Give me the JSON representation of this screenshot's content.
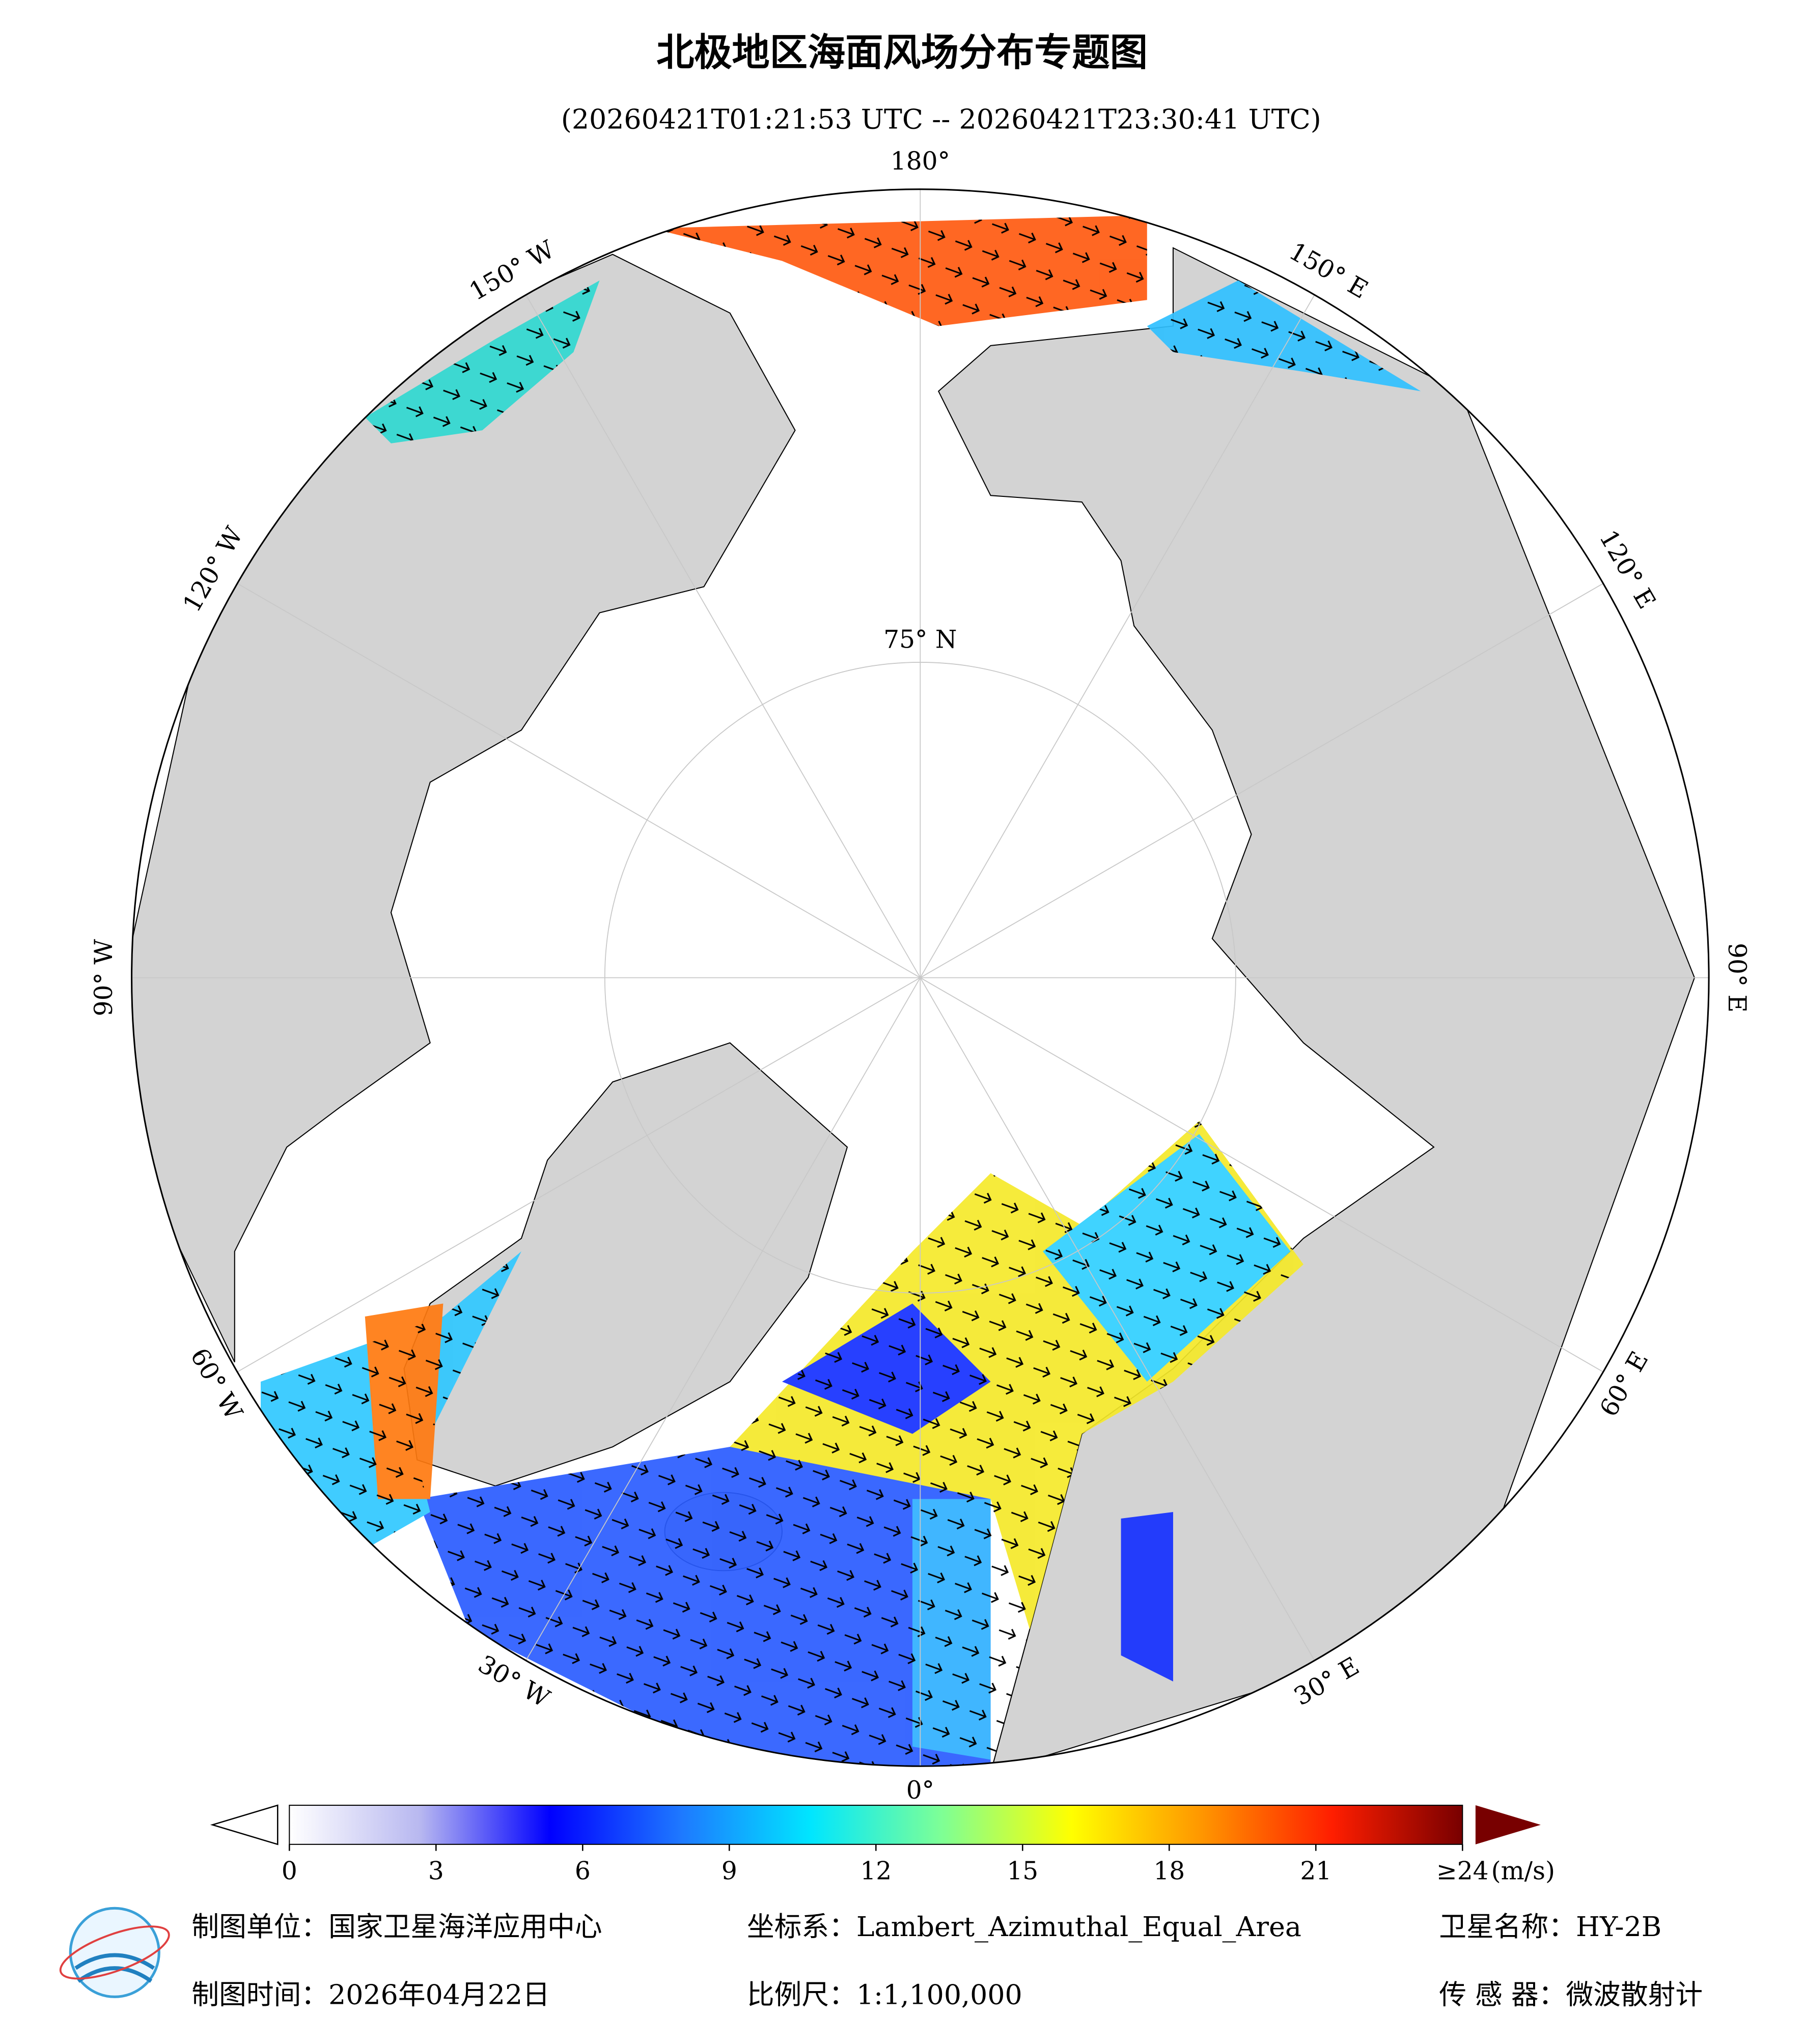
{
  "header": {
    "title": "北极地区海面风场分布专题图",
    "subtitle": "(20260421T01:21:53 UTC -- 20260421T23:30:41 UTC)"
  },
  "map": {
    "lon_ticks": [
      {
        "value": 180,
        "label": "180°"
      },
      {
        "value": 150,
        "label": "150° E"
      },
      {
        "value": 120,
        "label": "120° E"
      },
      {
        "value": 90,
        "label": "90° E"
      },
      {
        "value": 60,
        "label": "60° E"
      },
      {
        "value": 30,
        "label": "30° E"
      },
      {
        "value": 0,
        "label": "0°"
      },
      {
        "value": -30,
        "label": "30° W"
      },
      {
        "value": -60,
        "label": "60° W"
      },
      {
        "value": -90,
        "label": "90° W"
      },
      {
        "value": -120,
        "label": "120° W"
      },
      {
        "value": -150,
        "label": "150° W"
      }
    ],
    "lat_ticks": [
      {
        "value": 75,
        "label": "75° N"
      }
    ]
  },
  "colorbar": {
    "colors": [
      "#ffffff",
      "#b8b8f0",
      "#0000ff",
      "#1e78ff",
      "#00e6ff",
      "#7dff96",
      "#ffff00",
      "#ff9600",
      "#ff1e00",
      "#780000"
    ],
    "range": [
      0,
      24
    ],
    "ticks": [
      0,
      3,
      6,
      9,
      12,
      15,
      18,
      21,
      {
        "value": 24,
        "label": "≥24"
      }
    ],
    "unit": "(m/s)"
  },
  "footer": {
    "unit": "制图单位：国家卫星海洋应用中心",
    "coords": "坐标系：Lambert_Azimuthal_Equal_Area",
    "satellite": "卫星名称：HY-2B",
    "date": "制图时间：2026年04月22日",
    "scale": "比例尺：1:1,100,000",
    "sensor": "传 感 器：微波散射计"
  }
}
